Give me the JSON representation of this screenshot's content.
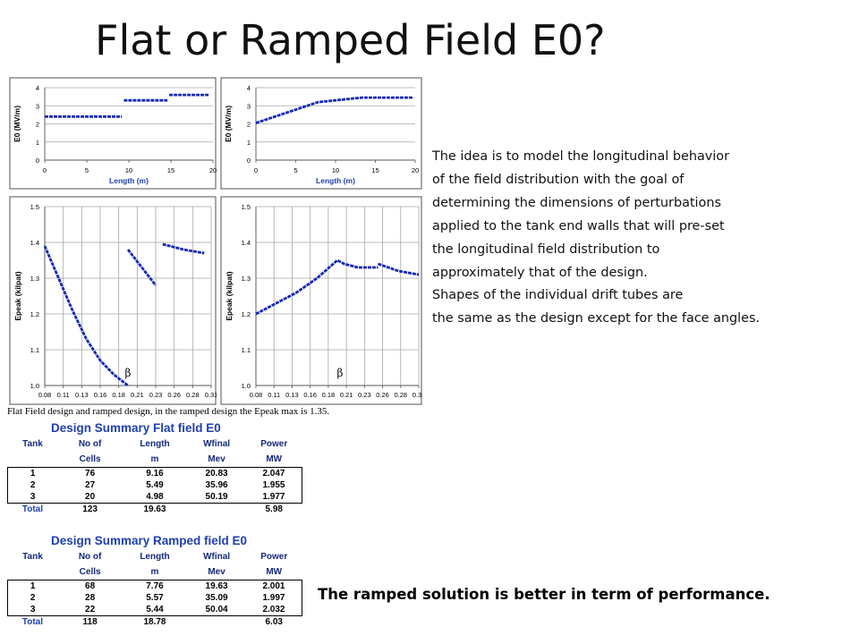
{
  "slide": {
    "title": "Flat or Ramped Field E0?",
    "caption": "Flat Field design and ramped design, in the ramped design the Epeak max is 1.35.",
    "description_lines": [
      "The idea is to model the longitudinal behavior",
      "of the field distribution with the goal of",
      "determining the dimensions of perturbations",
      "applied to the tank end walls that will pre-set",
      "the longitudinal field distribution to",
      "approximately that of the design.",
      "Shapes of the individual drift tubes are",
      "the same as the design except for the face angles."
    ],
    "conclusion": "The ramped solution is better in term of performance."
  },
  "colors": {
    "series": "#1428b4",
    "table_header": "#1f3fb0",
    "grid": "#a6a6a6"
  },
  "chart_data": [
    {
      "type": "line",
      "panel": "flat-e0",
      "xlabel": "Length (m)",
      "ylabel": "E0 (MV/m)",
      "xlim": [
        0,
        20
      ],
      "ylim": [
        0,
        4
      ],
      "xticks": [
        "0",
        "5",
        "10",
        "15",
        "20"
      ],
      "yticks": [
        "0",
        "1",
        "2",
        "3",
        "4"
      ],
      "grid": true,
      "series": [
        {
          "x": [
            0,
            9.16
          ],
          "y": [
            2.4,
            2.4
          ]
        },
        {
          "x": [
            9.4,
            14.6
          ],
          "y": [
            3.3,
            3.3
          ]
        },
        {
          "x": [
            14.8,
            19.6
          ],
          "y": [
            3.6,
            3.6
          ]
        }
      ]
    },
    {
      "type": "line",
      "panel": "ramped-e0",
      "xlabel": "Length (m)",
      "ylabel": "E0 (MV/m)",
      "xlim": [
        0,
        20
      ],
      "ylim": [
        0,
        4
      ],
      "xticks": [
        "0",
        "5",
        "10",
        "15",
        "20"
      ],
      "yticks": [
        "0",
        "1",
        "2",
        "3",
        "4"
      ],
      "grid": true,
      "series": [
        {
          "x": [
            0,
            7.8,
            13.3,
            19.8
          ],
          "y": [
            2.05,
            3.2,
            3.45,
            3.45
          ]
        }
      ]
    },
    {
      "type": "line",
      "panel": "flat-epeak",
      "xlabel": "",
      "ylabel": "Epeak (kilpat)",
      "annotation": "β",
      "xlim": [
        0.08,
        0.32
      ],
      "ylim": [
        1.0,
        1.5
      ],
      "xticks": [
        "0.08",
        "0.11",
        "0.13",
        "0.16",
        "0.18",
        "0.21",
        "0.23",
        "0.26",
        "0.28",
        "0.31"
      ],
      "yticks": [
        "1.0",
        "1.1",
        "1.2",
        "1.3",
        "1.4",
        "1.5"
      ],
      "grid": true,
      "series": [
        {
          "x": [
            0.08,
            0.1,
            0.12,
            0.14,
            0.16,
            0.18,
            0.2
          ],
          "y": [
            1.39,
            1.3,
            1.21,
            1.13,
            1.07,
            1.03,
            1.0
          ]
        },
        {
          "x": [
            0.2,
            0.22,
            0.24
          ],
          "y": [
            1.38,
            1.33,
            1.28
          ]
        },
        {
          "x": [
            0.25,
            0.28,
            0.31
          ],
          "y": [
            1.395,
            1.38,
            1.37
          ]
        }
      ]
    },
    {
      "type": "line",
      "panel": "ramped-epeak",
      "xlabel": "",
      "ylabel": "Epeak (kilpat)",
      "annotation": "β",
      "xlim": [
        0.08,
        0.32
      ],
      "ylim": [
        1.0,
        1.5
      ],
      "xticks": [
        "0.08",
        "0.11",
        "0.13",
        "0.16",
        "0.18",
        "0.21",
        "0.23",
        "0.26",
        "0.28",
        "0.31"
      ],
      "yticks": [
        "1.0",
        "1.1",
        "1.2",
        "1.3",
        "1.4",
        "1.5"
      ],
      "grid": true,
      "series": [
        {
          "x": [
            0.08,
            0.11,
            0.14,
            0.17,
            0.2,
            0.21,
            0.23,
            0.26
          ],
          "y": [
            1.2,
            1.23,
            1.26,
            1.3,
            1.35,
            1.34,
            1.33,
            1.33
          ]
        },
        {
          "x": [
            0.26,
            0.29,
            0.32
          ],
          "y": [
            1.34,
            1.32,
            1.31
          ]
        }
      ]
    },
    {
      "type": "table",
      "title": "Design Summary Flat field E0",
      "header1": [
        "Tank",
        "No of",
        "Length",
        "Wfinal",
        "Power"
      ],
      "header2": [
        "",
        "Cells",
        "m",
        "Mev",
        "MW"
      ],
      "rows": [
        [
          "1",
          "76",
          "9.16",
          "20.83",
          "2.047"
        ],
        [
          "2",
          "27",
          "5.49",
          "35.96",
          "1.955"
        ],
        [
          "3",
          "20",
          "4.98",
          "50.19",
          "1.977"
        ]
      ],
      "total": [
        "Total",
        "123",
        "19.63",
        "",
        "5.98"
      ]
    },
    {
      "type": "table",
      "title": "Design Summary Ramped field E0",
      "header1": [
        "Tank",
        "No of",
        "Length",
        "Wfinal",
        "Power"
      ],
      "header2": [
        "",
        "Cells",
        "m",
        "Mev",
        "MW"
      ],
      "rows": [
        [
          "1",
          "68",
          "7.76",
          "19.63",
          "2.001"
        ],
        [
          "2",
          "28",
          "5.57",
          "35.09",
          "1.997"
        ],
        [
          "3",
          "22",
          "5.44",
          "50.04",
          "2.032"
        ]
      ],
      "total": [
        "Total",
        "118",
        "18.78",
        "",
        "6.03"
      ]
    }
  ]
}
